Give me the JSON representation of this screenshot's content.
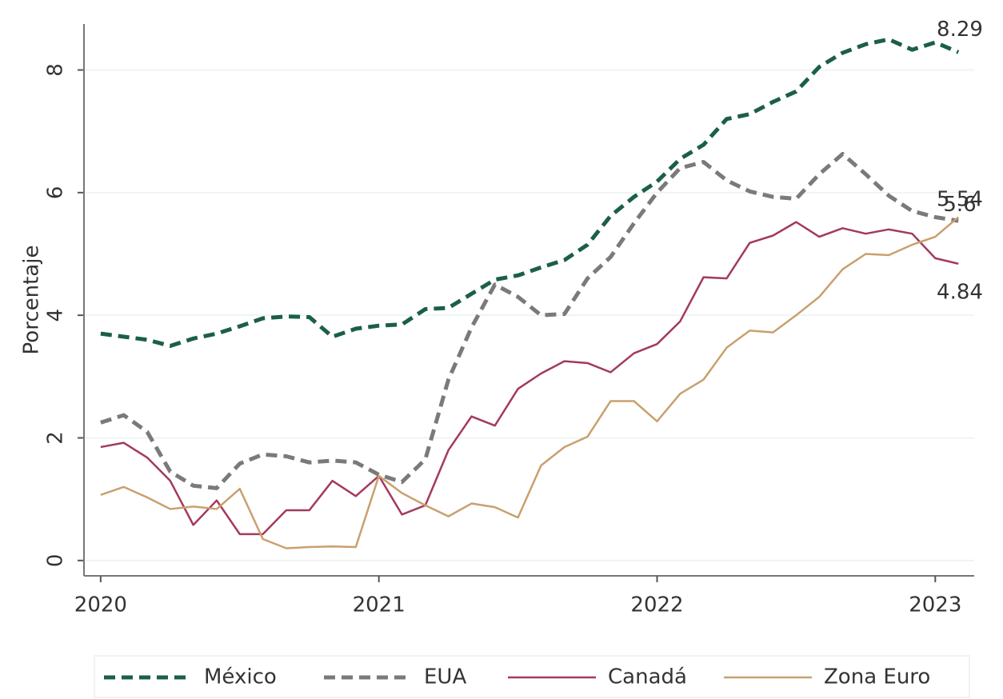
{
  "chart_data": {
    "type": "line",
    "y_label": "Porcentaje",
    "x": [
      2020.0,
      2020.083,
      2020.167,
      2020.25,
      2020.333,
      2020.417,
      2020.5,
      2020.583,
      2020.667,
      2020.75,
      2020.833,
      2020.917,
      2021.0,
      2021.083,
      2021.167,
      2021.25,
      2021.333,
      2021.417,
      2021.5,
      2021.583,
      2021.667,
      2021.75,
      2021.833,
      2021.917,
      2022.0,
      2022.083,
      2022.167,
      2022.25,
      2022.333,
      2022.417,
      2022.5,
      2022.583,
      2022.667,
      2022.75,
      2022.833,
      2022.917,
      2023.0,
      2023.083
    ],
    "series": [
      {
        "name": "México",
        "color": "#1b5e4b",
        "dashed": true,
        "end_label": "8.29",
        "values": [
          3.7,
          3.65,
          3.6,
          3.5,
          3.62,
          3.7,
          3.82,
          3.95,
          3.98,
          3.97,
          3.65,
          3.78,
          3.83,
          3.85,
          4.1,
          4.12,
          4.35,
          4.58,
          4.65,
          4.78,
          4.9,
          5.15,
          5.62,
          5.93,
          6.18,
          6.55,
          6.78,
          7.2,
          7.28,
          7.48,
          7.65,
          8.05,
          8.28,
          8.42,
          8.5,
          8.33,
          8.45,
          8.29
        ]
      },
      {
        "name": "EUA",
        "color": "#7a7a7a",
        "dashed": true,
        "end_label": "5.54",
        "values": [
          2.25,
          2.37,
          2.1,
          1.45,
          1.22,
          1.18,
          1.58,
          1.73,
          1.7,
          1.6,
          1.63,
          1.6,
          1.4,
          1.28,
          1.65,
          2.95,
          3.8,
          4.5,
          4.3,
          4.0,
          4.02,
          4.6,
          4.95,
          5.5,
          6.0,
          6.4,
          6.5,
          6.2,
          6.02,
          5.93,
          5.9,
          6.3,
          6.63,
          6.3,
          5.95,
          5.7,
          5.6,
          5.54
        ]
      },
      {
        "name": "Canadá",
        "color": "#a43a5c",
        "dashed": false,
        "end_label": "4.84",
        "values": [
          1.85,
          1.92,
          1.68,
          1.3,
          0.58,
          0.98,
          0.43,
          0.43,
          0.82,
          0.82,
          1.3,
          1.05,
          1.38,
          0.75,
          0.9,
          1.8,
          2.35,
          2.2,
          2.8,
          3.05,
          3.25,
          3.22,
          3.07,
          3.38,
          3.53,
          3.9,
          4.62,
          4.6,
          5.18,
          5.3,
          5.52,
          5.28,
          5.42,
          5.33,
          5.4,
          5.33,
          4.93,
          4.84
        ]
      },
      {
        "name": "Zona Euro",
        "color": "#c9a06e",
        "dashed": false,
        "end_label": "5.6",
        "values": [
          1.07,
          1.2,
          1.03,
          0.84,
          0.88,
          0.84,
          1.17,
          0.35,
          0.2,
          0.22,
          0.23,
          0.22,
          1.38,
          1.1,
          0.9,
          0.72,
          0.93,
          0.87,
          0.7,
          1.55,
          1.85,
          2.02,
          2.6,
          2.6,
          2.27,
          2.72,
          2.95,
          3.47,
          3.75,
          3.72,
          4.0,
          4.3,
          4.75,
          5.0,
          4.98,
          5.15,
          5.28,
          5.6
        ]
      }
    ],
    "xlim": [
      2019.94,
      2023.14
    ],
    "xticks": [
      2020,
      2021,
      2022,
      2023
    ],
    "ylim": [
      -0.25,
      8.75
    ],
    "yticks": [
      0,
      2,
      4,
      6,
      8
    ],
    "grid": true,
    "legend": "bottom"
  }
}
